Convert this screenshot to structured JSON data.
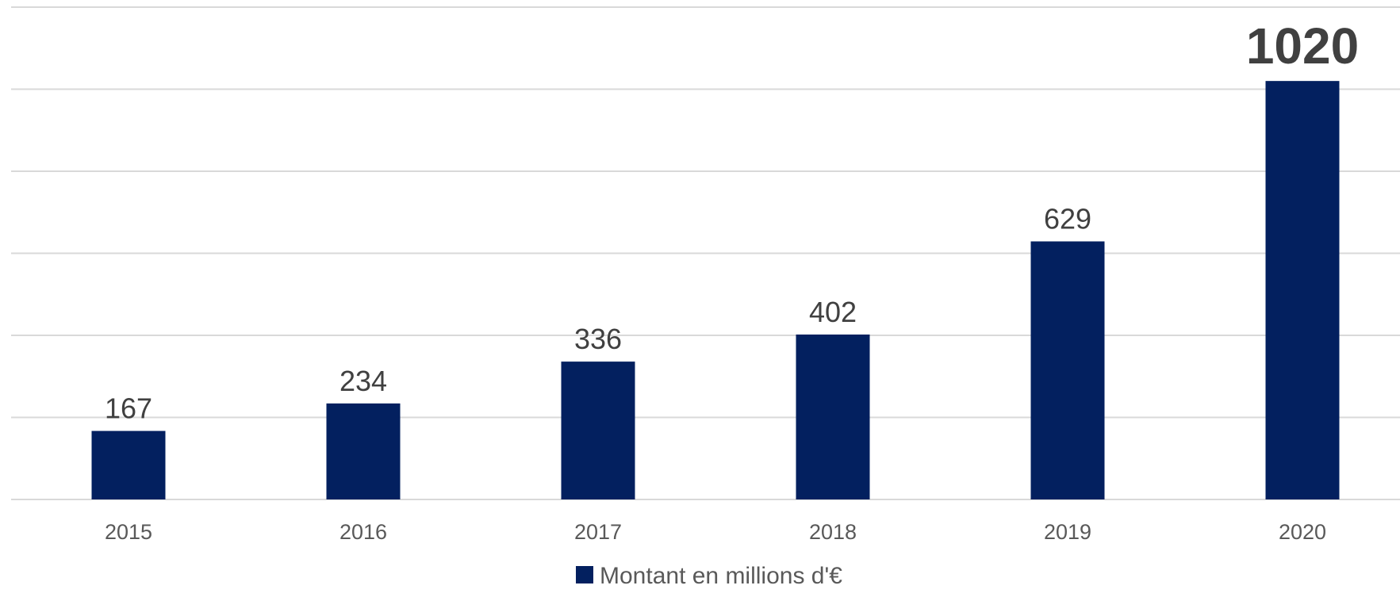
{
  "chart_data": {
    "type": "bar",
    "title": "",
    "xlabel": "",
    "ylabel": "",
    "categories": [
      "2015",
      "2016",
      "2017",
      "2018",
      "2019",
      "2020"
    ],
    "series": [
      {
        "name": "Montant en millions d'€",
        "values": [
          167,
          234,
          336,
          402,
          629,
          1020
        ],
        "data_labels": [
          "167",
          "234",
          "336",
          "402",
          "629",
          "1020"
        ],
        "emphasized_label_index": 5
      }
    ],
    "ylim": [
      0,
      1200
    ],
    "grid": true,
    "y_tick_labels_visible": false,
    "legend": "bottom-center"
  },
  "colors": {
    "bar": "#03205f",
    "grid": "#d9d9d9"
  }
}
